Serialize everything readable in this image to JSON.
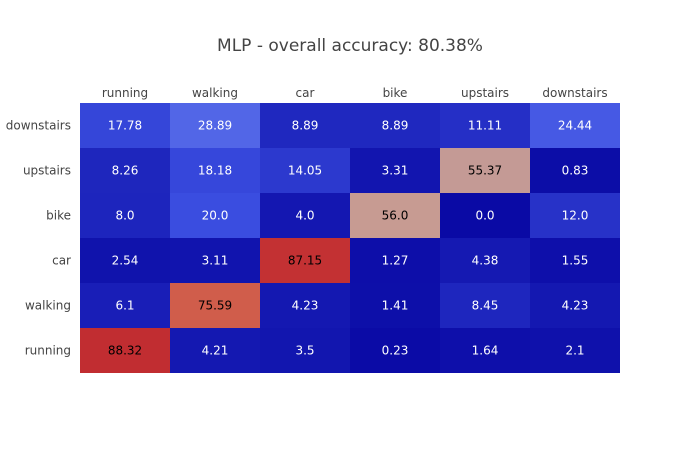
{
  "chart_data": {
    "type": "heatmap",
    "title": "MLP - overall accuracy: 80.38%",
    "x_categories": [
      "running",
      "walking",
      "car",
      "bike",
      "upstairs",
      "downstairs"
    ],
    "y_categories": [
      "downstairs",
      "upstairs",
      "bike",
      "car",
      "walking",
      "running"
    ],
    "values": [
      [
        17.78,
        28.89,
        8.89,
        8.89,
        11.11,
        24.44
      ],
      [
        8.26,
        18.18,
        14.05,
        3.31,
        55.37,
        0.83
      ],
      [
        8.0,
        20.0,
        4.0,
        56.0,
        0.0,
        12.0
      ],
      [
        2.54,
        3.11,
        87.15,
        1.27,
        4.38,
        1.55
      ],
      [
        6.1,
        75.59,
        4.23,
        1.41,
        8.45,
        4.23
      ],
      [
        88.32,
        4.21,
        3.5,
        0.23,
        1.64,
        2.1
      ]
    ],
    "value_labels": [
      [
        "17.78",
        "28.89",
        "8.89",
        "8.89",
        "11.11",
        "24.44"
      ],
      [
        "8.26",
        "18.18",
        "14.05",
        "3.31",
        "55.37",
        "0.83"
      ],
      [
        "8.0",
        "20.0",
        "4.0",
        "56.0",
        "0.0",
        "12.0"
      ],
      [
        "2.54",
        "3.11",
        "87.15",
        "1.27",
        "4.38",
        "1.55"
      ],
      [
        "6.1",
        "75.59",
        "4.23",
        "1.41",
        "8.45",
        "4.23"
      ],
      [
        "88.32",
        "4.21",
        "3.5",
        "0.23",
        "1.64",
        "2.1"
      ]
    ],
    "x_axis_position": "top",
    "zrange": [
      0,
      100
    ],
    "colorscale": [
      "#0a0aa5",
      "#3a4de0",
      "#7085f0",
      "#dda07a",
      "#cc4a3e",
      "#b2051e"
    ],
    "showscale": false,
    "grid": false
  }
}
